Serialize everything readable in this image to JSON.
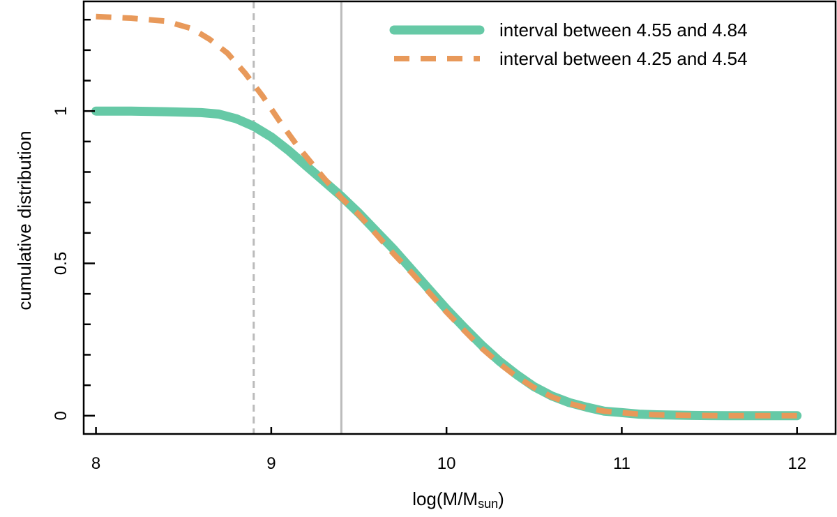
{
  "chart_data": {
    "type": "line",
    "xlabel_main": "log(M/M",
    "xlabel_sub": "sun",
    "xlabel_close": ")",
    "ylabel": "cumulative distribution",
    "xlim": [
      7.93,
      12.22
    ],
    "ylim": [
      -0.06,
      1.36
    ],
    "x_ticks": [
      8,
      9,
      10,
      11,
      12
    ],
    "x_tick_labels": [
      "8",
      "9",
      "10",
      "11",
      "12"
    ],
    "y_ticks": [
      0,
      0.5,
      1
    ],
    "y_tick_labels": [
      "0",
      "0.5",
      "1"
    ],
    "y_minor_ticks": [
      0.1,
      0.2,
      0.3,
      0.4,
      0.6,
      0.7,
      0.8,
      0.9,
      1.1,
      1.2,
      1.3
    ],
    "grid": false,
    "legend_position": "top-right",
    "vertical_lines": [
      {
        "x": 8.9,
        "style": "dashed",
        "color": "#bbbbbb"
      },
      {
        "x": 9.4,
        "style": "solid",
        "color": "#bbbbbb"
      }
    ],
    "series": [
      {
        "name": "interval between 4.55 and 4.84",
        "style": "solid",
        "color": "#66c9a6",
        "x": [
          8.0,
          8.2,
          8.4,
          8.6,
          8.7,
          8.8,
          8.9,
          9.0,
          9.1,
          9.2,
          9.3,
          9.4,
          9.5,
          9.6,
          9.7,
          9.8,
          9.9,
          10.0,
          10.1,
          10.2,
          10.3,
          10.4,
          10.5,
          10.6,
          10.7,
          10.8,
          10.9,
          11.0,
          11.1,
          11.2,
          11.4,
          11.6,
          11.8,
          12.0
        ],
        "y": [
          1.0,
          1.0,
          0.998,
          0.995,
          0.99,
          0.975,
          0.95,
          0.915,
          0.87,
          0.82,
          0.77,
          0.72,
          0.665,
          0.605,
          0.545,
          0.48,
          0.415,
          0.35,
          0.29,
          0.232,
          0.18,
          0.135,
          0.095,
          0.065,
          0.043,
          0.028,
          0.015,
          0.01,
          0.005,
          0.003,
          0.001,
          0.0,
          0.0,
          0.0
        ]
      },
      {
        "name": "interval between 4.25 and 4.54",
        "style": "dashed",
        "color": "#e8995a",
        "x": [
          8.0,
          8.2,
          8.4,
          8.55,
          8.65,
          8.75,
          8.85,
          8.95,
          9.05,
          9.15,
          9.25,
          9.3,
          9.4,
          9.5,
          9.6,
          9.7,
          9.8,
          9.9,
          10.0,
          10.1,
          10.2,
          10.3,
          10.4,
          10.5,
          10.6,
          10.7,
          10.8,
          10.9,
          11.0,
          11.1,
          11.2,
          11.4,
          11.6,
          11.8,
          12.0
        ],
        "y": [
          1.31,
          1.305,
          1.295,
          1.27,
          1.235,
          1.19,
          1.125,
          1.05,
          0.965,
          0.885,
          0.815,
          0.78,
          0.715,
          0.66,
          0.595,
          0.53,
          0.47,
          0.405,
          0.34,
          0.28,
          0.222,
          0.172,
          0.128,
          0.092,
          0.062,
          0.04,
          0.025,
          0.015,
          0.01,
          0.005,
          0.003,
          0.001,
          0.0,
          0.0,
          0.0
        ]
      }
    ]
  }
}
